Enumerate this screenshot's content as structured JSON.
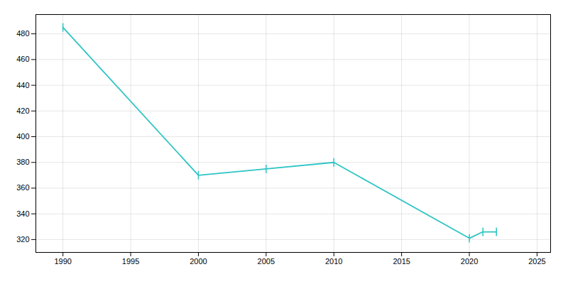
{
  "chart_data": {
    "type": "line",
    "x": [
      1990,
      2000,
      2005,
      2010,
      2020,
      2021,
      2022
    ],
    "values": [
      485,
      370,
      375,
      380,
      321,
      326,
      326
    ],
    "color": "#2EC4C4",
    "marker": "tick",
    "xlim": [
      1988,
      2026
    ],
    "ylim": [
      310,
      495
    ],
    "xticks": [
      1990,
      1995,
      2000,
      2005,
      2010,
      2015,
      2020,
      2025
    ],
    "yticks": [
      320,
      340,
      360,
      380,
      400,
      420,
      440,
      460,
      480
    ],
    "grid": true
  }
}
